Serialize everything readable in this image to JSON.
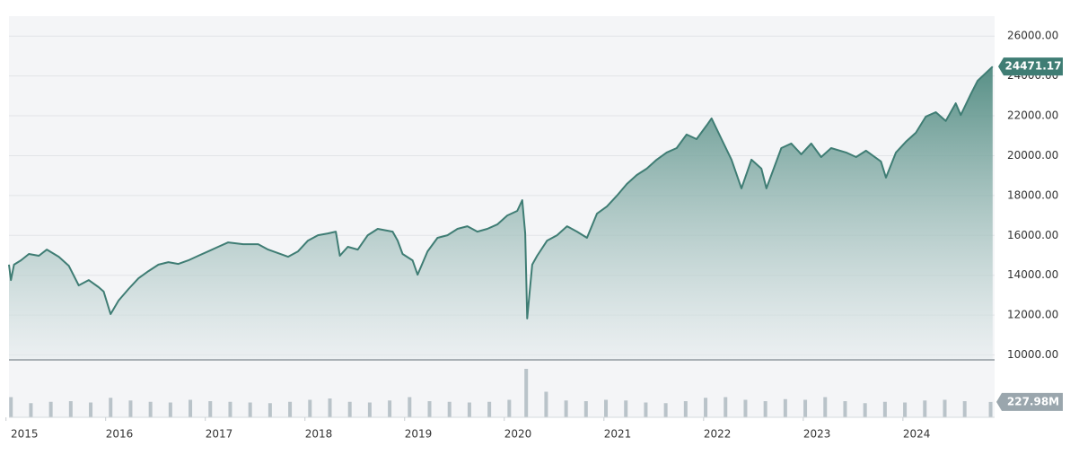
{
  "chart_data": {
    "type": "area",
    "color": "#3f7d74",
    "grid": true,
    "xlim": [
      2015.03,
      2024.92
    ],
    "xticks": [
      2015,
      2016,
      2017,
      2018,
      2019,
      2020,
      2021,
      2022,
      2023,
      2024
    ],
    "ylim": [
      9800,
      27000
    ],
    "yticks": [
      {
        "value": 10000,
        "label": "10000.00"
      },
      {
        "value": 12000,
        "label": "12000.00"
      },
      {
        "value": 14000,
        "label": "14000.00"
      },
      {
        "value": 16000,
        "label": "16000.00"
      },
      {
        "value": 18000,
        "label": "18000.00"
      },
      {
        "value": 20000,
        "label": "20000.00"
      },
      {
        "value": 22000,
        "label": "22000.00"
      },
      {
        "value": 24000,
        "label": "24000.00"
      },
      {
        "value": 26000,
        "label": "26000.00"
      }
    ],
    "x": [
      2015.03,
      2015.05,
      2015.08,
      2015.15,
      2015.23,
      2015.33,
      2015.41,
      2015.53,
      2015.63,
      2015.73,
      2015.83,
      2015.93,
      2015.98,
      2016.05,
      2016.13,
      2016.23,
      2016.33,
      2016.43,
      2016.53,
      2016.63,
      2016.73,
      2016.83,
      2016.93,
      2017.03,
      2017.13,
      2017.23,
      2017.38,
      2017.53,
      2017.63,
      2017.73,
      2017.83,
      2017.93,
      2018.03,
      2018.13,
      2018.23,
      2018.31,
      2018.35,
      2018.43,
      2018.53,
      2018.63,
      2018.73,
      2018.88,
      2018.93,
      2018.98,
      2019.08,
      2019.13,
      2019.23,
      2019.33,
      2019.43,
      2019.53,
      2019.63,
      2019.73,
      2019.83,
      2019.93,
      2020.03,
      2020.13,
      2020.18,
      2020.21,
      2020.23,
      2020.28,
      2020.33,
      2020.43,
      2020.53,
      2020.63,
      2020.73,
      2020.83,
      2020.93,
      2021.03,
      2021.13,
      2021.23,
      2021.33,
      2021.43,
      2021.53,
      2021.63,
      2021.73,
      2021.83,
      2021.93,
      2022.03,
      2022.08,
      2022.18,
      2022.28,
      2022.38,
      2022.48,
      2022.58,
      2022.63,
      2022.78,
      2022.88,
      2022.98,
      2023.08,
      2023.18,
      2023.28,
      2023.43,
      2023.53,
      2023.63,
      2023.78,
      2023.83,
      2023.93,
      2024.03,
      2024.13,
      2024.23,
      2024.33,
      2024.43,
      2024.53,
      2024.58,
      2024.68,
      2024.75,
      2024.9
    ],
    "values": [
      14530,
      13760,
      14530,
      14750,
      15070,
      14980,
      15290,
      14930,
      14480,
      13490,
      13760,
      13400,
      13180,
      12050,
      12730,
      13310,
      13850,
      14210,
      14530,
      14660,
      14570,
      14750,
      14980,
      15200,
      15430,
      15650,
      15560,
      15560,
      15290,
      15110,
      14930,
      15200,
      15740,
      16010,
      16100,
      16190,
      14980,
      15430,
      15290,
      16010,
      16330,
      16190,
      15740,
      15070,
      14750,
      14030,
      15200,
      15880,
      16010,
      16330,
      16460,
      16190,
      16330,
      16550,
      17000,
      17230,
      17770,
      16100,
      11830,
      14530,
      14980,
      15740,
      16010,
      16460,
      16190,
      15880,
      17090,
      17450,
      17990,
      18580,
      19030,
      19350,
      19800,
      20160,
      20380,
      21060,
      20830,
      21510,
      21870,
      20830,
      19800,
      18360,
      19800,
      19350,
      18360,
      20380,
      20610,
      20070,
      20610,
      19930,
      20380,
      20160,
      19930,
      20250,
      19710,
      18900,
      20160,
      20700,
      21150,
      21960,
      22180,
      21740,
      22630,
      22040,
      23080,
      23760,
      24471.17
    ],
    "last_price": 24471.17,
    "volume": {
      "color": "#b9c3c9",
      "ylim": [
        0,
        800
      ],
      "x": [
        2015.05,
        2015.25,
        2015.45,
        2015.65,
        2015.85,
        2016.05,
        2016.25,
        2016.45,
        2016.65,
        2016.85,
        2017.05,
        2017.25,
        2017.45,
        2017.65,
        2017.85,
        2018.05,
        2018.25,
        2018.45,
        2018.65,
        2018.85,
        2019.05,
        2019.25,
        2019.45,
        2019.65,
        2019.85,
        2020.05,
        2020.22,
        2020.42,
        2020.62,
        2020.82,
        2021.02,
        2021.22,
        2021.42,
        2021.62,
        2021.82,
        2022.02,
        2022.22,
        2022.42,
        2022.62,
        2022.82,
        2023.02,
        2023.22,
        2023.42,
        2023.62,
        2023.82,
        2024.02,
        2024.22,
        2024.42,
        2024.62,
        2024.88
      ],
      "values": [
        300,
        210,
        230,
        240,
        220,
        290,
        250,
        230,
        220,
        260,
        240,
        230,
        220,
        210,
        230,
        260,
        280,
        230,
        220,
        250,
        300,
        240,
        230,
        220,
        230,
        260,
        720,
        380,
        250,
        240,
        260,
        250,
        220,
        210,
        240,
        290,
        300,
        260,
        240,
        270,
        260,
        300,
        240,
        210,
        230,
        220,
        250,
        260,
        240,
        227.98
      ],
      "last": {
        "value": 227.98,
        "label": "227.98M"
      }
    }
  }
}
